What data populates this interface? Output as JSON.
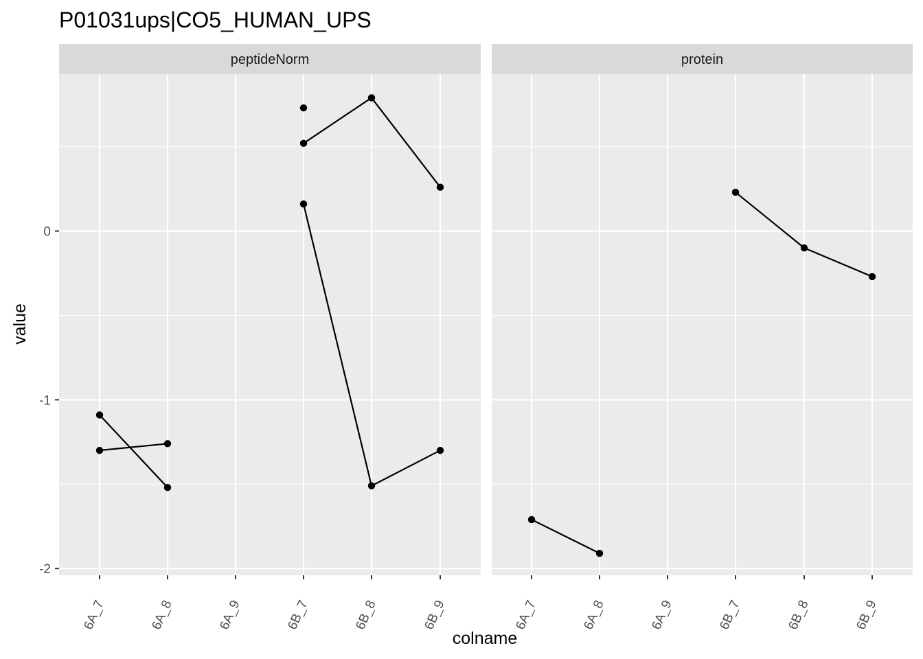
{
  "chart_data": {
    "type": "line",
    "title": "P01031ups|CO5_HUMAN_UPS",
    "xlabel": "colname",
    "ylabel": "value",
    "categories": [
      "6A_7",
      "6A_8",
      "6A_9",
      "6B_7",
      "6B_8",
      "6B_9"
    ],
    "ylim": [
      -2.04,
      0.93
    ],
    "yticks": [
      -2,
      -1,
      0
    ],
    "grid": true,
    "colors": {
      "panel_bg": "#ebebeb",
      "strip_bg": "#d9d9d9",
      "grid": "#ffffff",
      "line": "#000000",
      "point": "#000000"
    },
    "panels": [
      {
        "name": "peptideNorm",
        "series": [
          {
            "x": [
              "6A_7",
              "6A_8"
            ],
            "y": [
              -1.09,
              -1.52
            ]
          },
          {
            "x": [
              "6A_7",
              "6A_8"
            ],
            "y": [
              -1.3,
              -1.26
            ]
          },
          {
            "x": [
              "6B_7"
            ],
            "y": [
              0.73
            ]
          },
          {
            "x": [
              "6B_7",
              "6B_8",
              "6B_9"
            ],
            "y": [
              0.52,
              0.79,
              0.26
            ]
          },
          {
            "x": [
              "6B_7",
              "6B_8",
              "6B_9"
            ],
            "y": [
              0.16,
              -1.51,
              -1.3
            ]
          }
        ]
      },
      {
        "name": "protein",
        "series": [
          {
            "x": [
              "6A_7",
              "6A_8"
            ],
            "y": [
              -1.71,
              -1.91
            ]
          },
          {
            "x": [
              "6B_7",
              "6B_8",
              "6B_9"
            ],
            "y": [
              0.23,
              -0.1,
              -0.27
            ]
          }
        ]
      }
    ]
  }
}
